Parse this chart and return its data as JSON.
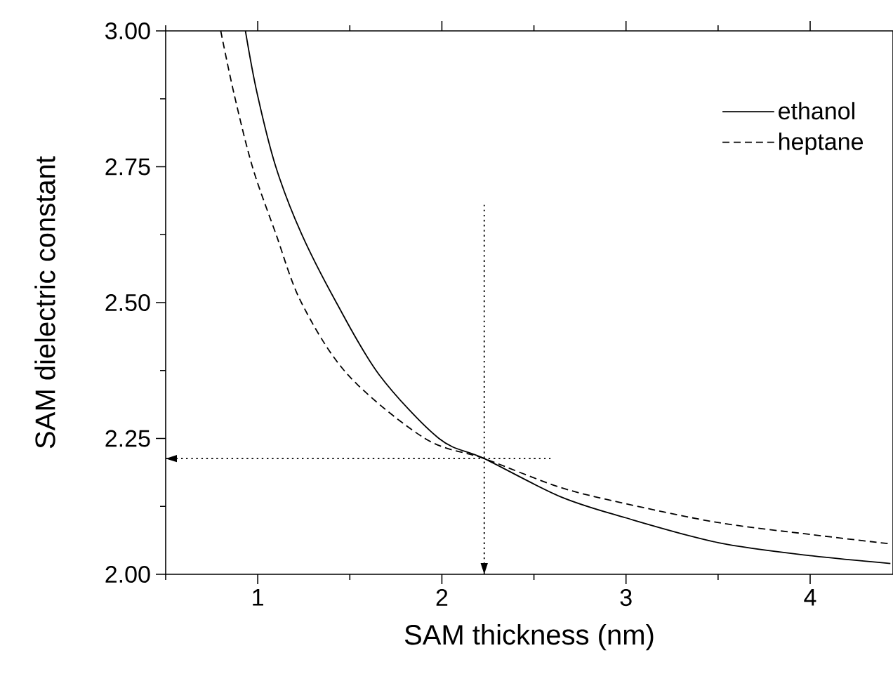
{
  "chart_data": {
    "type": "line",
    "xlabel": "SAM thickness (nm)",
    "ylabel": "SAM dielectric constant",
    "xlim": [
      0.5,
      4.45
    ],
    "xticks": [
      1,
      2,
      3,
      4
    ],
    "ylim": [
      2.0,
      3.0
    ],
    "yticks": [
      {
        "value": 2.0,
        "label": "2.00"
      },
      {
        "value": 2.25,
        "label": "2.25"
      },
      {
        "value": 2.5,
        "label": "2.50"
      },
      {
        "value": 2.75,
        "label": "2.75"
      },
      {
        "value": 3.0,
        "label": "3.00"
      }
    ],
    "legend": "top right",
    "grid": false,
    "series": [
      {
        "name": "ethanol",
        "color": "#000000",
        "line_style": "solid",
        "x": [
          0.933,
          0.996,
          1.098,
          1.237,
          1.427,
          1.66,
          1.984,
          2.23,
          2.643,
          2.998,
          3.504,
          4.01,
          4.436
        ],
        "values": [
          3.0,
          2.886,
          2.75,
          2.627,
          2.5,
          2.367,
          2.25,
          2.213,
          2.143,
          2.104,
          2.058,
          2.034,
          2.02
        ]
      },
      {
        "name": "heptane",
        "color": "#000000",
        "line_style": "dashed",
        "x": [
          0.799,
          0.87,
          0.971,
          1.098,
          1.237,
          1.49,
          1.908,
          2.23,
          2.643,
          2.998,
          3.504,
          4.01,
          4.436
        ],
        "values": [
          3.0,
          2.886,
          2.75,
          2.627,
          2.5,
          2.367,
          2.25,
          2.213,
          2.16,
          2.13,
          2.095,
          2.073,
          2.056
        ]
      },
      {
        "color": "#000000",
        "line_style": "dotted",
        "x": [
          2.23,
          2.23
        ],
        "values": [
          2.68,
          2.0
        ]
      },
      {
        "color": "#000000",
        "line_style": "dotted",
        "x": [
          2.59,
          0.5
        ],
        "values": [
          2.213,
          2.213
        ]
      }
    ]
  }
}
